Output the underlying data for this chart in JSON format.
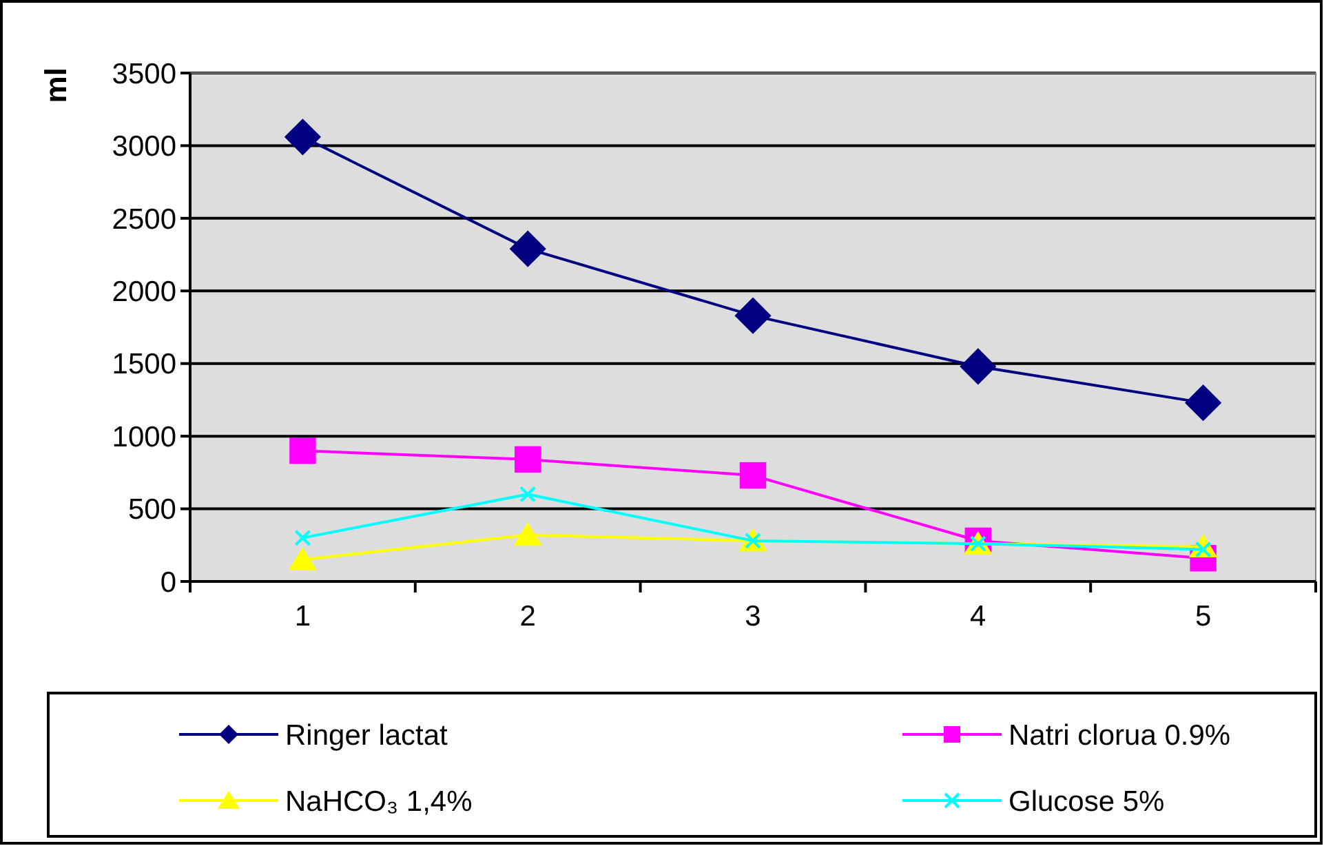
{
  "chart_data": {
    "type": "line",
    "ylabel": "ml",
    "categories": [
      "1",
      "2",
      "3",
      "4",
      "5"
    ],
    "ylim": [
      0,
      3500
    ],
    "yticks": [
      0,
      500,
      1000,
      1500,
      2000,
      2500,
      3000,
      3500
    ],
    "grid": "y",
    "legend": "bottom",
    "series": [
      {
        "name": "Ringer lactat",
        "color": "#000080",
        "marker": "diamond",
        "values": [
          3060,
          2290,
          1830,
          1480,
          1230
        ]
      },
      {
        "name": "Natri clorua 0.9%",
        "color": "#ff00ff",
        "marker": "square",
        "values": [
          900,
          840,
          730,
          280,
          160
        ]
      },
      {
        "name": "NaHCO₃ 1,4%",
        "color": "#ffff00",
        "marker": "triangle",
        "values": [
          150,
          320,
          280,
          260,
          240
        ]
      },
      {
        "name": "Glucose 5%",
        "color": "#00ffff",
        "marker": "cross",
        "values": [
          300,
          600,
          280,
          260,
          220
        ]
      }
    ]
  }
}
